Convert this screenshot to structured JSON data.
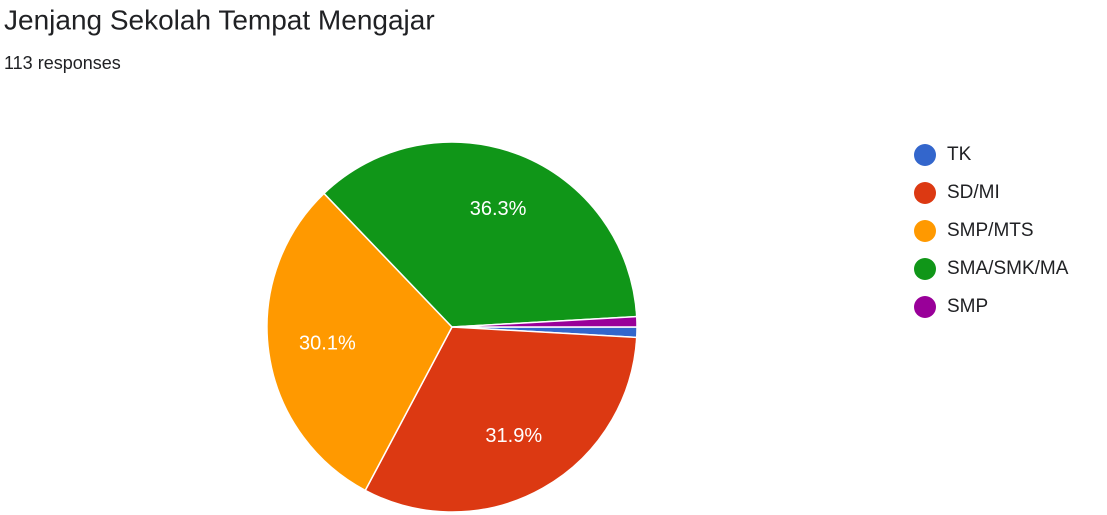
{
  "chart_data": {
    "type": "pie",
    "title": "Jenjang Sekolah Tempat Mengajar",
    "subtitle": "113 responses",
    "categories": [
      "TK",
      "SD/MI",
      "SMP/MTS",
      "SMA/SMK/MA",
      "SMP"
    ],
    "values": [
      0.9,
      31.9,
      30.1,
      36.3,
      0.9
    ],
    "value_labels": [
      null,
      "31.9%",
      "30.1%",
      "36.3%",
      null
    ],
    "colors": [
      "#3366cc",
      "#dc3912",
      "#ff9900",
      "#109618",
      "#990099"
    ],
    "legend": "right"
  }
}
